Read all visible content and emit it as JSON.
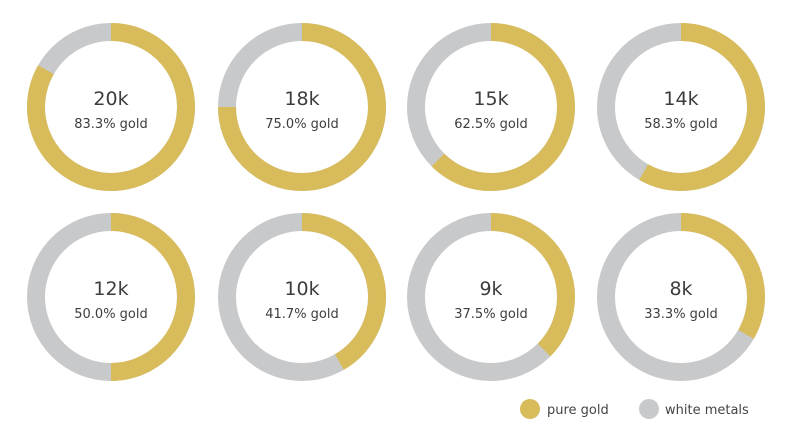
{
  "chart_data": {
    "type": "pie",
    "variant": "donut-grid",
    "title": "",
    "colors": {
      "pure_gold": "#D8BC5C",
      "white_metals": "#C8C9CB"
    },
    "legend": {
      "placement": "bottom-right",
      "entries": [
        {
          "label": "pure gold",
          "color": "#D8BC5C"
        },
        {
          "label": "white metals",
          "color": "#C8C9CB"
        }
      ]
    },
    "charts": [
      {
        "label": "20k",
        "gold_pct": 83.3,
        "caption": "83.3% gold"
      },
      {
        "label": "18k",
        "gold_pct": 75.0,
        "caption": "75.0% gold"
      },
      {
        "label": "15k",
        "gold_pct": 62.5,
        "caption": "62.5% gold"
      },
      {
        "label": "14k",
        "gold_pct": 58.3,
        "caption": "58.3% gold"
      },
      {
        "label": "12k",
        "gold_pct": 50.0,
        "caption": "50.0% gold"
      },
      {
        "label": "10k",
        "gold_pct": 41.7,
        "caption": "41.7% gold"
      },
      {
        "label": "9k",
        "gold_pct": 37.5,
        "caption": "37.5% gold"
      },
      {
        "label": "8k",
        "gold_pct": 33.3,
        "caption": "33.3% gold"
      }
    ]
  }
}
